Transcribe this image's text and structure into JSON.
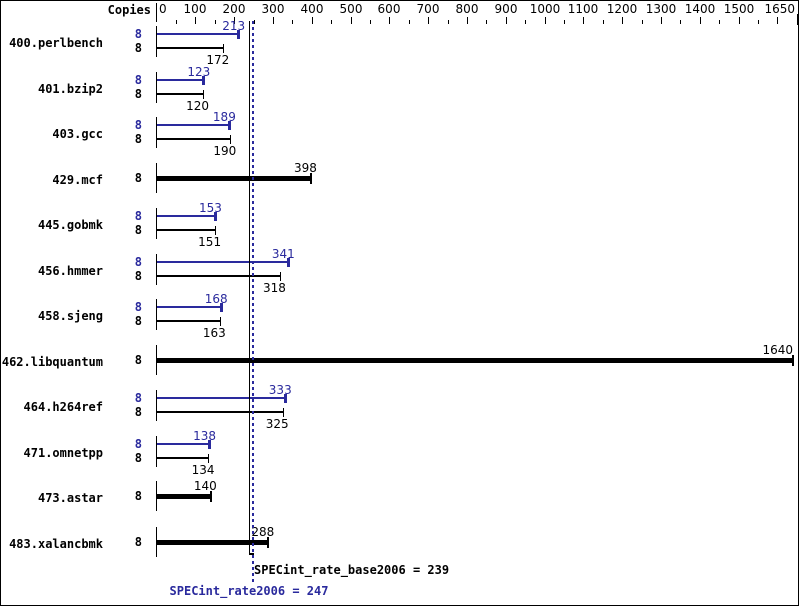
{
  "chart_data": {
    "type": "bar",
    "orientation": "horizontal",
    "copies_column_header": "Copies",
    "x_axis": {
      "min": 0,
      "max": 1650,
      "minor_tick_interval": 50,
      "major_tick_interval": 100,
      "tick_labels": [
        "0",
        "100",
        "200",
        "300",
        "400",
        "500",
        "600",
        "700",
        "800",
        "900",
        "1000",
        "1100",
        "1200",
        "1300",
        "1400",
        "1500",
        "1650"
      ]
    },
    "series_colors": {
      "peak": "#2a2a9d",
      "base": "#000000"
    },
    "benchmarks": [
      {
        "name": "400.perlbench",
        "copies": 8,
        "peak": 213,
        "base": 172
      },
      {
        "name": "401.bzip2",
        "copies": 8,
        "peak": 123,
        "base": 120
      },
      {
        "name": "403.gcc",
        "copies": 8,
        "peak": 189,
        "base": 190
      },
      {
        "name": "429.mcf",
        "copies": 8,
        "peak": null,
        "base": 398
      },
      {
        "name": "445.gobmk",
        "copies": 8,
        "peak": 153,
        "base": 151
      },
      {
        "name": "456.hmmer",
        "copies": 8,
        "peak": 341,
        "base": 318
      },
      {
        "name": "458.sjeng",
        "copies": 8,
        "peak": 168,
        "base": 163
      },
      {
        "name": "462.libquantum",
        "copies": 8,
        "peak": null,
        "base": 1640
      },
      {
        "name": "464.h264ref",
        "copies": 8,
        "peak": 333,
        "base": 325
      },
      {
        "name": "471.omnetpp",
        "copies": 8,
        "peak": 138,
        "base": 134
      },
      {
        "name": "473.astar",
        "copies": 8,
        "peak": null,
        "base": 140
      },
      {
        "name": "483.xalancbmk",
        "copies": 8,
        "peak": null,
        "base": 288
      }
    ],
    "reference_lines": [
      {
        "name": "base_mean",
        "label": "SPECint_rate_base2006 = 239",
        "value": 239,
        "color": "#000000",
        "style": "solid"
      },
      {
        "name": "peak_mean",
        "label": "SPECint_rate2006 = 247",
        "value": 247,
        "color": "#2a2a9d",
        "style": "dotted"
      }
    ]
  }
}
